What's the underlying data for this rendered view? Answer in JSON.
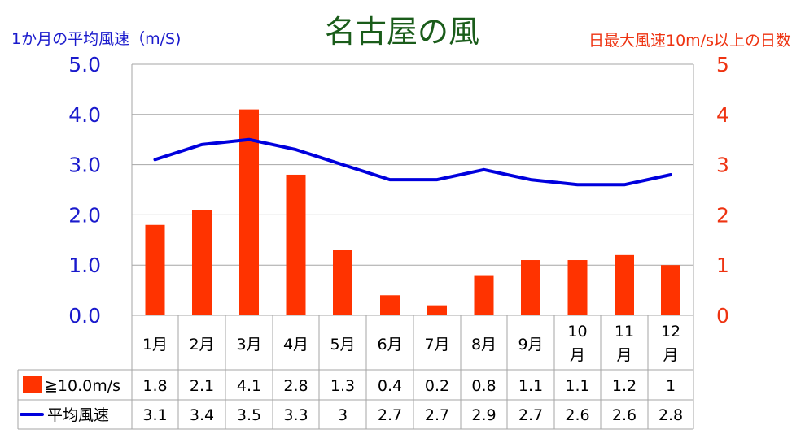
{
  "chart_data": {
    "type": "bar",
    "title": "名古屋の風",
    "categories": [
      "1月",
      "2月",
      "3月",
      "4月",
      "5月",
      "6月",
      "7月",
      "8月",
      "9月",
      "10月",
      "11月",
      "12月"
    ],
    "y_left": {
      "label": "1か月の平均風速（m/S)",
      "ylim": [
        0,
        5
      ],
      "ticks": [
        "0.0",
        "1.0",
        "2.0",
        "3.0",
        "4.0",
        "5.0"
      ]
    },
    "y_right": {
      "label": "日最大風速10m/s以上の日数",
      "ylim": [
        0,
        5
      ],
      "ticks": [
        "0",
        "1",
        "2",
        "3",
        "4",
        "5"
      ]
    },
    "series": [
      {
        "name": "≧10.0m/s",
        "type": "bar",
        "axis": "right",
        "color": "#ff3300",
        "values": [
          1.8,
          2.1,
          4.1,
          2.8,
          1.3,
          0.4,
          0.2,
          0.8,
          1.1,
          1.1,
          1.2,
          1
        ],
        "table_values": [
          "1.8",
          "2.1",
          "4.1",
          "2.8",
          "1.3",
          "0.4",
          "0.2",
          "0.8",
          "1.1",
          "1.1",
          "1.2",
          "1"
        ]
      },
      {
        "name": "平均風速",
        "type": "line",
        "axis": "left",
        "color": "#0000dd",
        "values": [
          3.1,
          3.4,
          3.5,
          3.3,
          3.0,
          2.7,
          2.7,
          2.9,
          2.7,
          2.6,
          2.6,
          2.8
        ],
        "table_values": [
          "3.1",
          "3.4",
          "3.5",
          "3.3",
          "3",
          "2.7",
          "2.7",
          "2.9",
          "2.7",
          "2.6",
          "2.6",
          "2.8"
        ]
      }
    ],
    "grid": true,
    "legend": "data-table",
    "colors": {
      "title": "#1a5c1a",
      "left_axis": "#1a1acc",
      "right_axis": "#ee3311",
      "grid": "#a6a6a6"
    }
  }
}
